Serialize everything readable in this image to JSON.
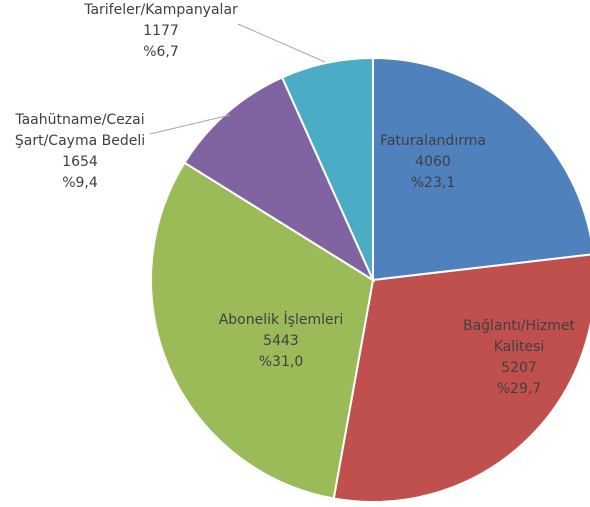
{
  "chart_data": {
    "type": "pie",
    "categories": [
      "Faturalandırma",
      "Bağlantı/Hizmet\nKalitesi",
      "Abonelik İşlemleri",
      "Taahütname/Cezai\nŞart/Cayma Bedeli",
      "Tarifeler/Kampanyalar"
    ],
    "values": [
      4060,
      5207,
      5443,
      1654,
      1177
    ],
    "percent_labels": [
      "%23,1",
      "%29,7",
      "%31,0",
      "%9,4",
      "%6,7"
    ],
    "colors": [
      "#4f81bd",
      "#c0504d",
      "#9bbb59",
      "#8064a2",
      "#4bacc6"
    ]
  }
}
